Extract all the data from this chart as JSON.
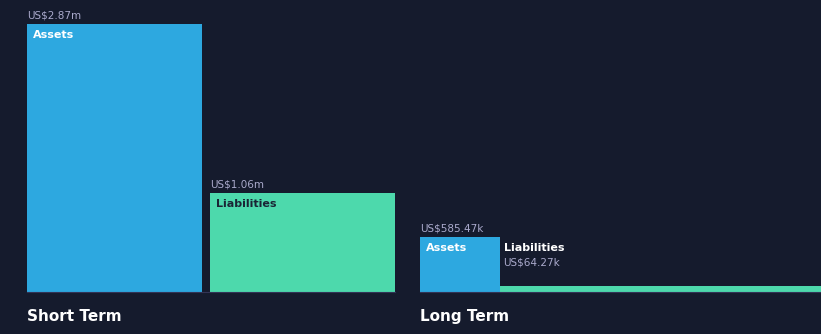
{
  "background_color": "#151b2d",
  "short_term": {
    "assets_value": 2.87,
    "assets_label": "Assets",
    "assets_value_label": "US$2.87m",
    "assets_color": "#2da8e0",
    "liabilities_value": 1.06,
    "liabilities_label": "Liabilities",
    "liabilities_value_label": "US$1.06m",
    "liabilities_color": "#4dd9ac",
    "section_label": "Short Term"
  },
  "long_term": {
    "assets_value": 585470,
    "assets_label": "Assets",
    "assets_value_label": "US$585.47k",
    "assets_color": "#2da8e0",
    "liabilities_value": 64270,
    "liabilities_label": "Liabilities",
    "liabilities_value_label": "US$64.27k",
    "liabilities_color": "#4dd9ac",
    "section_label": "Long Term"
  },
  "text_color": "#ffffff",
  "label_color": "#ffffff",
  "value_label_color": "#aaaacc",
  "font_size_labels": 8,
  "font_size_section": 11,
  "font_size_value": 7.5
}
